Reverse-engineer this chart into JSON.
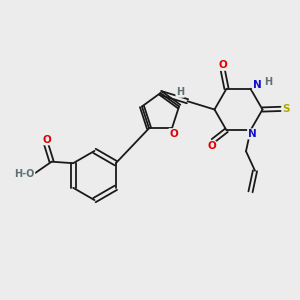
{
  "bg_color": "#ececec",
  "bond_color": "#1a1a1a",
  "atom_colors": {
    "O": "#dd0000",
    "N": "#1111cc",
    "S": "#aaaa00",
    "H": "#607070",
    "C": "#1a1a1a"
  },
  "lw": 1.3,
  "fs": 7.5
}
